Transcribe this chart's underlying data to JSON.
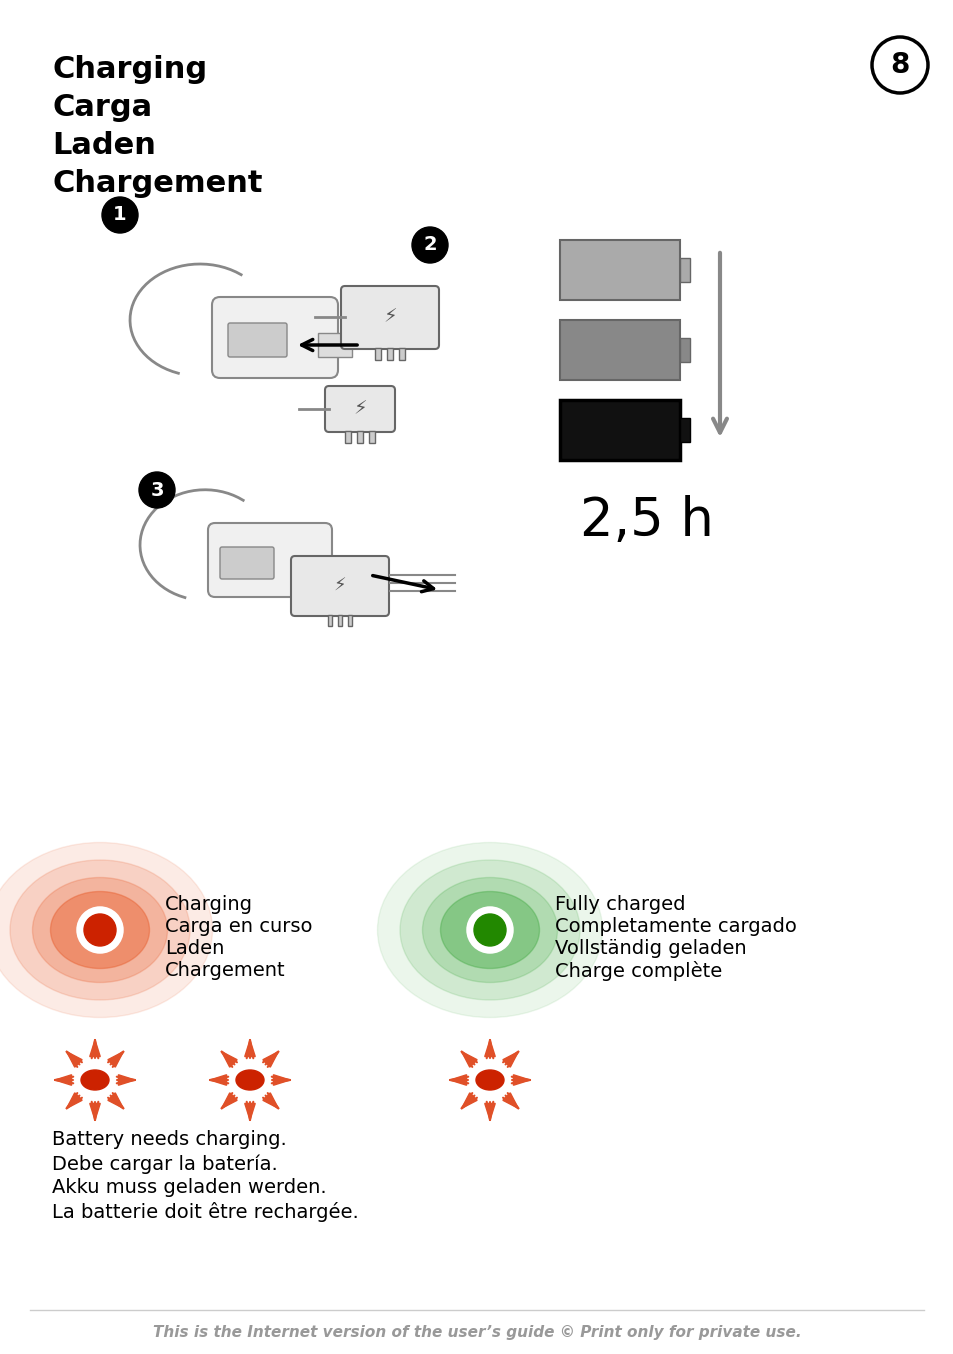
{
  "title_lines": [
    "Charging",
    "Carga",
    "Laden",
    "Chargement"
  ],
  "page_number": "8",
  "bg_color": "#ffffff",
  "title_fontsize": 22,
  "title_color": "#000000",
  "page_num_fontsize": 18,
  "charging_label": [
    "Charging",
    "Carga en curso",
    "Laden",
    "Chargement"
  ],
  "charged_label": [
    "Fully charged",
    "Completamente cargado",
    "Vollständig geladen",
    "Charge complète"
  ],
  "battery_text": [
    "Battery needs charging.",
    "Debe cargar la batería.",
    "Akku muss geladen werden.",
    "La batterie doit être rechargée."
  ],
  "footer_text": "This is the Internet version of the user’s guide © Print only for private use.",
  "time_label": "2,5 h",
  "red_color": "#cc2200",
  "green_color": "#228800",
  "orange_glow": "#e86030",
  "green_glow": "#44aa44",
  "sun_color": "#e05028",
  "footer_color": "#999999"
}
